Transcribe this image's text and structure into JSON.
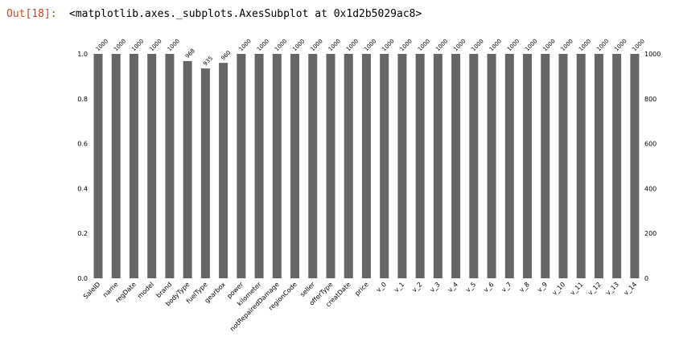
{
  "cell": {
    "prompt": "Out[18]:",
    "text": "<matplotlib.axes._subplots.AxesSubplot at 0x1d2b5029ac8>"
  },
  "colors": {
    "bar": "#666666",
    "prompt": "#d84315"
  },
  "chart_data": {
    "type": "bar",
    "categories": [
      "SaleID",
      "name",
      "regDate",
      "model",
      "brand",
      "bodyType",
      "fuelType",
      "gearbox",
      "power",
      "kilometer",
      "notRepairedDamage",
      "regionCode",
      "seller",
      "offerType",
      "creatDate",
      "price",
      "v_0",
      "v_1",
      "v_2",
      "v_3",
      "v_4",
      "v_5",
      "v_6",
      "v_7",
      "v_8",
      "v_9",
      "v_10",
      "v_11",
      "v_12",
      "v_13",
      "v_14"
    ],
    "values": [
      1.0,
      1.0,
      1.0,
      1.0,
      1.0,
      0.968,
      0.935,
      0.96,
      1.0,
      1.0,
      1.0,
      1.0,
      1.0,
      1.0,
      1.0,
      1.0,
      1.0,
      1.0,
      1.0,
      1.0,
      1.0,
      1.0,
      1.0,
      1.0,
      1.0,
      1.0,
      1.0,
      1.0,
      1.0,
      1.0,
      1.0
    ],
    "counts": [
      "1000",
      "1000",
      "1000",
      "1000",
      "1000",
      "968",
      "935",
      "960",
      "1000",
      "1000",
      "1000",
      "1000",
      "1000",
      "1000",
      "1000",
      "1000",
      "1000",
      "1000",
      "1000",
      "1000",
      "1000",
      "1000",
      "1000",
      "1000",
      "1000",
      "1000",
      "1000",
      "1000",
      "1000",
      "1000",
      "1000"
    ],
    "ylim": [
      0,
      1
    ],
    "yticks_left": [
      "0.0",
      "0.2",
      "0.4",
      "0.6",
      "0.8",
      "1.0"
    ],
    "yticks_right": [
      "0",
      "200",
      "400",
      "600",
      "800",
      "1000"
    ],
    "grid": false
  }
}
